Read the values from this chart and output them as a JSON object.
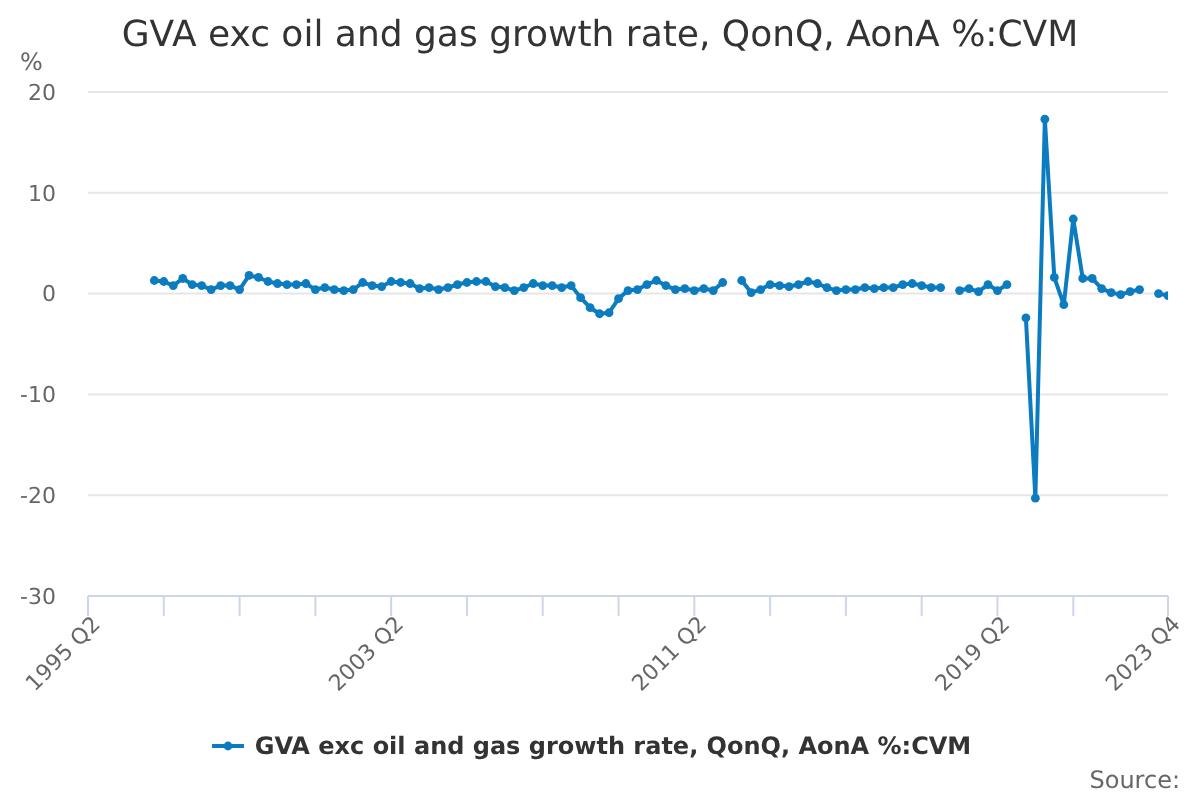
{
  "chart_data": {
    "type": "line",
    "title": "GVA exc oil and gas growth rate, QonQ, AonA %:CVM",
    "ylabel": "%",
    "x": [
      "1997-01",
      "1997-04",
      "1997-07",
      "1997-10",
      "1998-01",
      "1998-04",
      "1998-07",
      "1998-10",
      "1999-01",
      "1999-04",
      "1999-07",
      "1999-10",
      "2000-01",
      "2000-04",
      "2000-07",
      "2000-10",
      "2001-01",
      "2001-04",
      "2001-07",
      "2001-10",
      "2002-01",
      "2002-04",
      "2002-07",
      "2002-10",
      "2003-01",
      "2003-04",
      "2003-07",
      "2003-10",
      "2004-01",
      "2004-04",
      "2004-07",
      "2004-10",
      "2005-01",
      "2005-04",
      "2005-07",
      "2005-10",
      "2006-01",
      "2006-04",
      "2006-07",
      "2006-10",
      "2007-01",
      "2007-04",
      "2007-07",
      "2007-10",
      "2008-01",
      "2008-04",
      "2008-07",
      "2008-10",
      "2009-01",
      "2009-04",
      "2009-07",
      "2009-10",
      "2010-01",
      "2010-04",
      "2010-07",
      "2010-10",
      "2011-01",
      "2011-04",
      "2011-07",
      "2011-10",
      "2012-01",
      "2012-04",
      "2012-07",
      "2012-10",
      "2013-01",
      "2013-04",
      "2013-07",
      "2013-10",
      "2014-01",
      "2014-04",
      "2014-07",
      "2014-10",
      "2015-01",
      "2015-04",
      "2015-07",
      "2015-10",
      "2016-01",
      "2016-04",
      "2016-07",
      "2016-10",
      "2017-01",
      "2017-04",
      "2017-07",
      "2017-10",
      "2018-01",
      "2018-04",
      "2018-07",
      "2018-10",
      "2019-01",
      "2019-04",
      "2019-07",
      "2019-10",
      "2020-01",
      "2020-04",
      "2020-07",
      "2020-10",
      "2021-01",
      "2021-04",
      "2021-07",
      "2021-10",
      "2022-01",
      "2022-04",
      "2022-07",
      "2022-10",
      "2023-01",
      "2023-04",
      "2023-07",
      "2023-10"
    ],
    "series": [
      {
        "name": "GVA exc oil and gas growth rate, QonQ, AonA %:CVM",
        "color": "#0c7cc0",
        "values": [
          1.3,
          1.2,
          0.8,
          1.5,
          0.9,
          0.8,
          0.4,
          0.8,
          0.8,
          0.4,
          1.8,
          1.6,
          1.2,
          1.0,
          0.9,
          0.9,
          1.0,
          0.4,
          0.6,
          0.4,
          0.3,
          0.4,
          1.1,
          0.8,
          0.7,
          1.2,
          1.1,
          1.0,
          0.5,
          0.6,
          0.4,
          0.6,
          0.9,
          1.1,
          1.2,
          1.2,
          0.7,
          0.6,
          0.3,
          0.6,
          1.0,
          0.8,
          0.8,
          0.6,
          0.8,
          -0.4,
          -1.4,
          -2.0,
          -1.9,
          -0.5,
          0.3,
          0.4,
          0.9,
          1.3,
          0.8,
          0.4,
          0.5,
          0.3,
          0.5,
          0.3,
          1.1,
          null,
          1.3,
          0.1,
          0.4,
          0.9,
          0.8,
          0.7,
          0.9,
          1.2,
          1.0,
          0.6,
          0.3,
          0.4,
          0.4,
          0.6,
          0.5,
          0.6,
          0.6,
          0.9,
          1.0,
          0.8,
          0.6,
          0.6,
          null,
          0.3,
          0.5,
          0.2,
          0.9,
          0.3,
          0.9,
          null,
          -2.4,
          -20.3,
          17.3,
          1.6,
          -1.1,
          7.4,
          1.5,
          1.5,
          0.5,
          0.1,
          -0.1,
          0.2,
          0.4,
          null,
          0.0,
          -0.2
        ]
      }
    ],
    "xlim": [
      "1995-04",
      "2023-10"
    ],
    "xticks": [
      {
        "value": "1995-04",
        "label": "1995 Q2"
      },
      {
        "value": "1997-04",
        "label": null
      },
      {
        "value": "1999-04",
        "label": null
      },
      {
        "value": "2001-04",
        "label": null
      },
      {
        "value": "2003-04",
        "label": "2003 Q2"
      },
      {
        "value": "2005-04",
        "label": null
      },
      {
        "value": "2007-04",
        "label": null
      },
      {
        "value": "2009-04",
        "label": null
      },
      {
        "value": "2011-04",
        "label": "2011 Q2"
      },
      {
        "value": "2013-04",
        "label": null
      },
      {
        "value": "2015-04",
        "label": null
      },
      {
        "value": "2017-04",
        "label": null
      },
      {
        "value": "2019-04",
        "label": "2019 Q2"
      },
      {
        "value": "2021-04",
        "label": null
      },
      {
        "value": "2023-10",
        "label": "2023 Q4"
      }
    ],
    "ylim": [
      -30,
      20
    ],
    "yticks": [
      -30,
      -20,
      -10,
      0,
      10,
      20
    ],
    "grid": "y",
    "legend": "bottom",
    "marker": "circle",
    "annotations": [
      "Source:"
    ]
  }
}
